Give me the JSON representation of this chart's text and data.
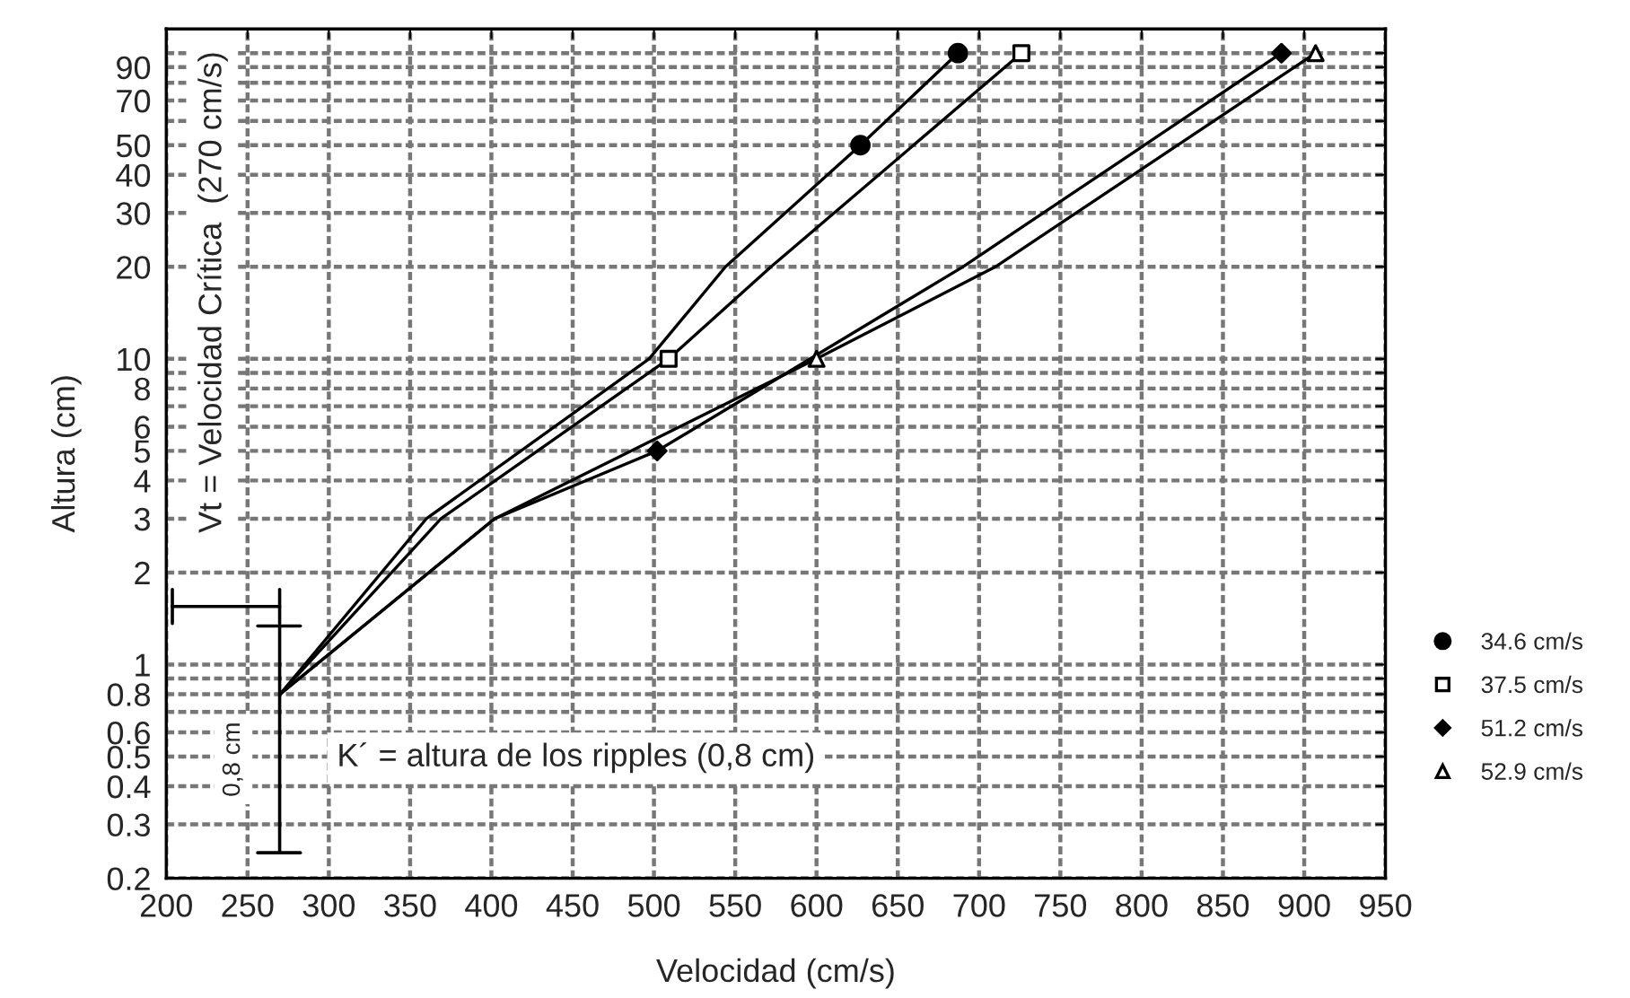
{
  "chart_data": {
    "type": "line",
    "xlabel": "Velocidad (cm/s)",
    "ylabel": "Altura (cm)",
    "log": "y",
    "grid": true,
    "legend": "right",
    "xlim": [
      200,
      950
    ],
    "xticks": [
      200,
      250,
      300,
      350,
      400,
      450,
      500,
      550,
      600,
      650,
      700,
      750,
      800,
      850,
      900,
      950
    ],
    "ylim": [
      0.2,
      120
    ],
    "yticks": [
      0.2,
      0.3,
      0.4,
      0.5,
      0.6,
      {
        "value": 0.7,
        "label": null
      },
      0.8,
      {
        "value": 0.9,
        "label": null
      },
      1,
      2,
      3,
      4,
      5,
      6,
      {
        "value": 7,
        "label": null
      },
      8,
      {
        "value": 9,
        "label": null
      },
      10,
      20,
      30,
      40,
      50,
      {
        "value": 60,
        "label": null
      },
      70,
      {
        "value": 80,
        "label": null
      },
      90,
      {
        "value": 100,
        "label": null
      }
    ],
    "series": [
      {
        "color": "#000000",
        "marker": "none",
        "x": [
          270,
          360,
          497,
          544,
          627,
          687
        ],
        "values": [
          0.8,
          3,
          10,
          20,
          50,
          100
        ]
      },
      {
        "color": "#000000",
        "marker": "none",
        "x": [
          270,
          369,
          509,
          572,
          726
        ],
        "values": [
          0.8,
          3,
          10,
          20,
          100
        ]
      },
      {
        "color": "#000000",
        "marker": "none",
        "x": [
          270,
          402,
          502,
          690,
          886
        ],
        "values": [
          0.8,
          3,
          5,
          20,
          100
        ]
      },
      {
        "color": "#000000",
        "marker": "none",
        "x": [
          270,
          402,
          600,
          710,
          907
        ],
        "values": [
          0.8,
          3,
          10,
          20,
          100
        ]
      },
      {
        "type": "scatter",
        "name": "34.6 cm/s",
        "color": "#000000",
        "marker": "circle",
        "x": [
          627,
          687
        ],
        "values": [
          50,
          100
        ]
      },
      {
        "type": "scatter",
        "name": "37.5 cm/s",
        "color": "#000000",
        "marker": "square-open",
        "x": [
          509,
          726
        ],
        "values": [
          10,
          100
        ]
      },
      {
        "type": "scatter",
        "name": "51.2 cm/s",
        "color": "#000000",
        "marker": "diamond",
        "x": [
          502,
          886
        ],
        "values": [
          5,
          100
        ]
      },
      {
        "type": "scatter",
        "name": "52.9 cm/s",
        "color": "#000000",
        "marker": "triangle-open",
        "x": [
          600,
          907
        ],
        "values": [
          10,
          100
        ]
      }
    ],
    "annotations": [
      "Vt = Velocidad Crítica  (270 cm/s)",
      "0,8 cm",
      "K´ = altura de los ripples (0,8 cm)"
    ]
  }
}
